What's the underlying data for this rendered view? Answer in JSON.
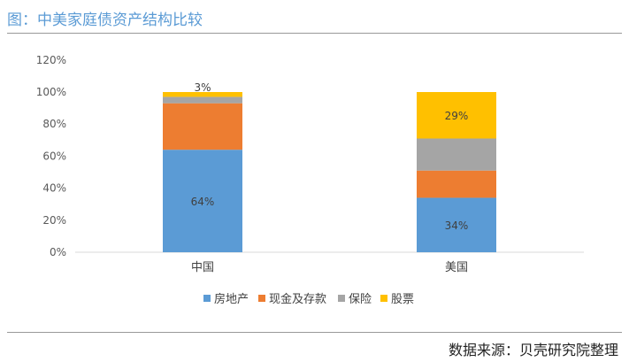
{
  "title": "图：中美家庭债资产结构比较",
  "source": "数据来源：贝壳研究院整理",
  "chart_data": {
    "type": "bar",
    "stacked": true,
    "categories": [
      "中国",
      "美国"
    ],
    "series": [
      {
        "name": "房地产",
        "color": "#5b9bd5",
        "values": [
          64,
          34
        ],
        "labels": [
          "64%",
          "34%"
        ]
      },
      {
        "name": "现金及存款",
        "color": "#ed7d31",
        "values": [
          29,
          17
        ],
        "labels": [
          "",
          ""
        ]
      },
      {
        "name": "保险",
        "color": "#a5a5a5",
        "values": [
          4,
          20
        ],
        "labels": [
          "",
          ""
        ]
      },
      {
        "name": "股票",
        "color": "#ffc000",
        "values": [
          3,
          29
        ],
        "labels": [
          "3%",
          "29%"
        ]
      }
    ],
    "ylim": [
      0,
      120
    ],
    "yticks": [
      "0%",
      "20%",
      "40%",
      "60%",
      "80%",
      "100%",
      "120%"
    ],
    "grid": false,
    "legend": "bottom"
  }
}
